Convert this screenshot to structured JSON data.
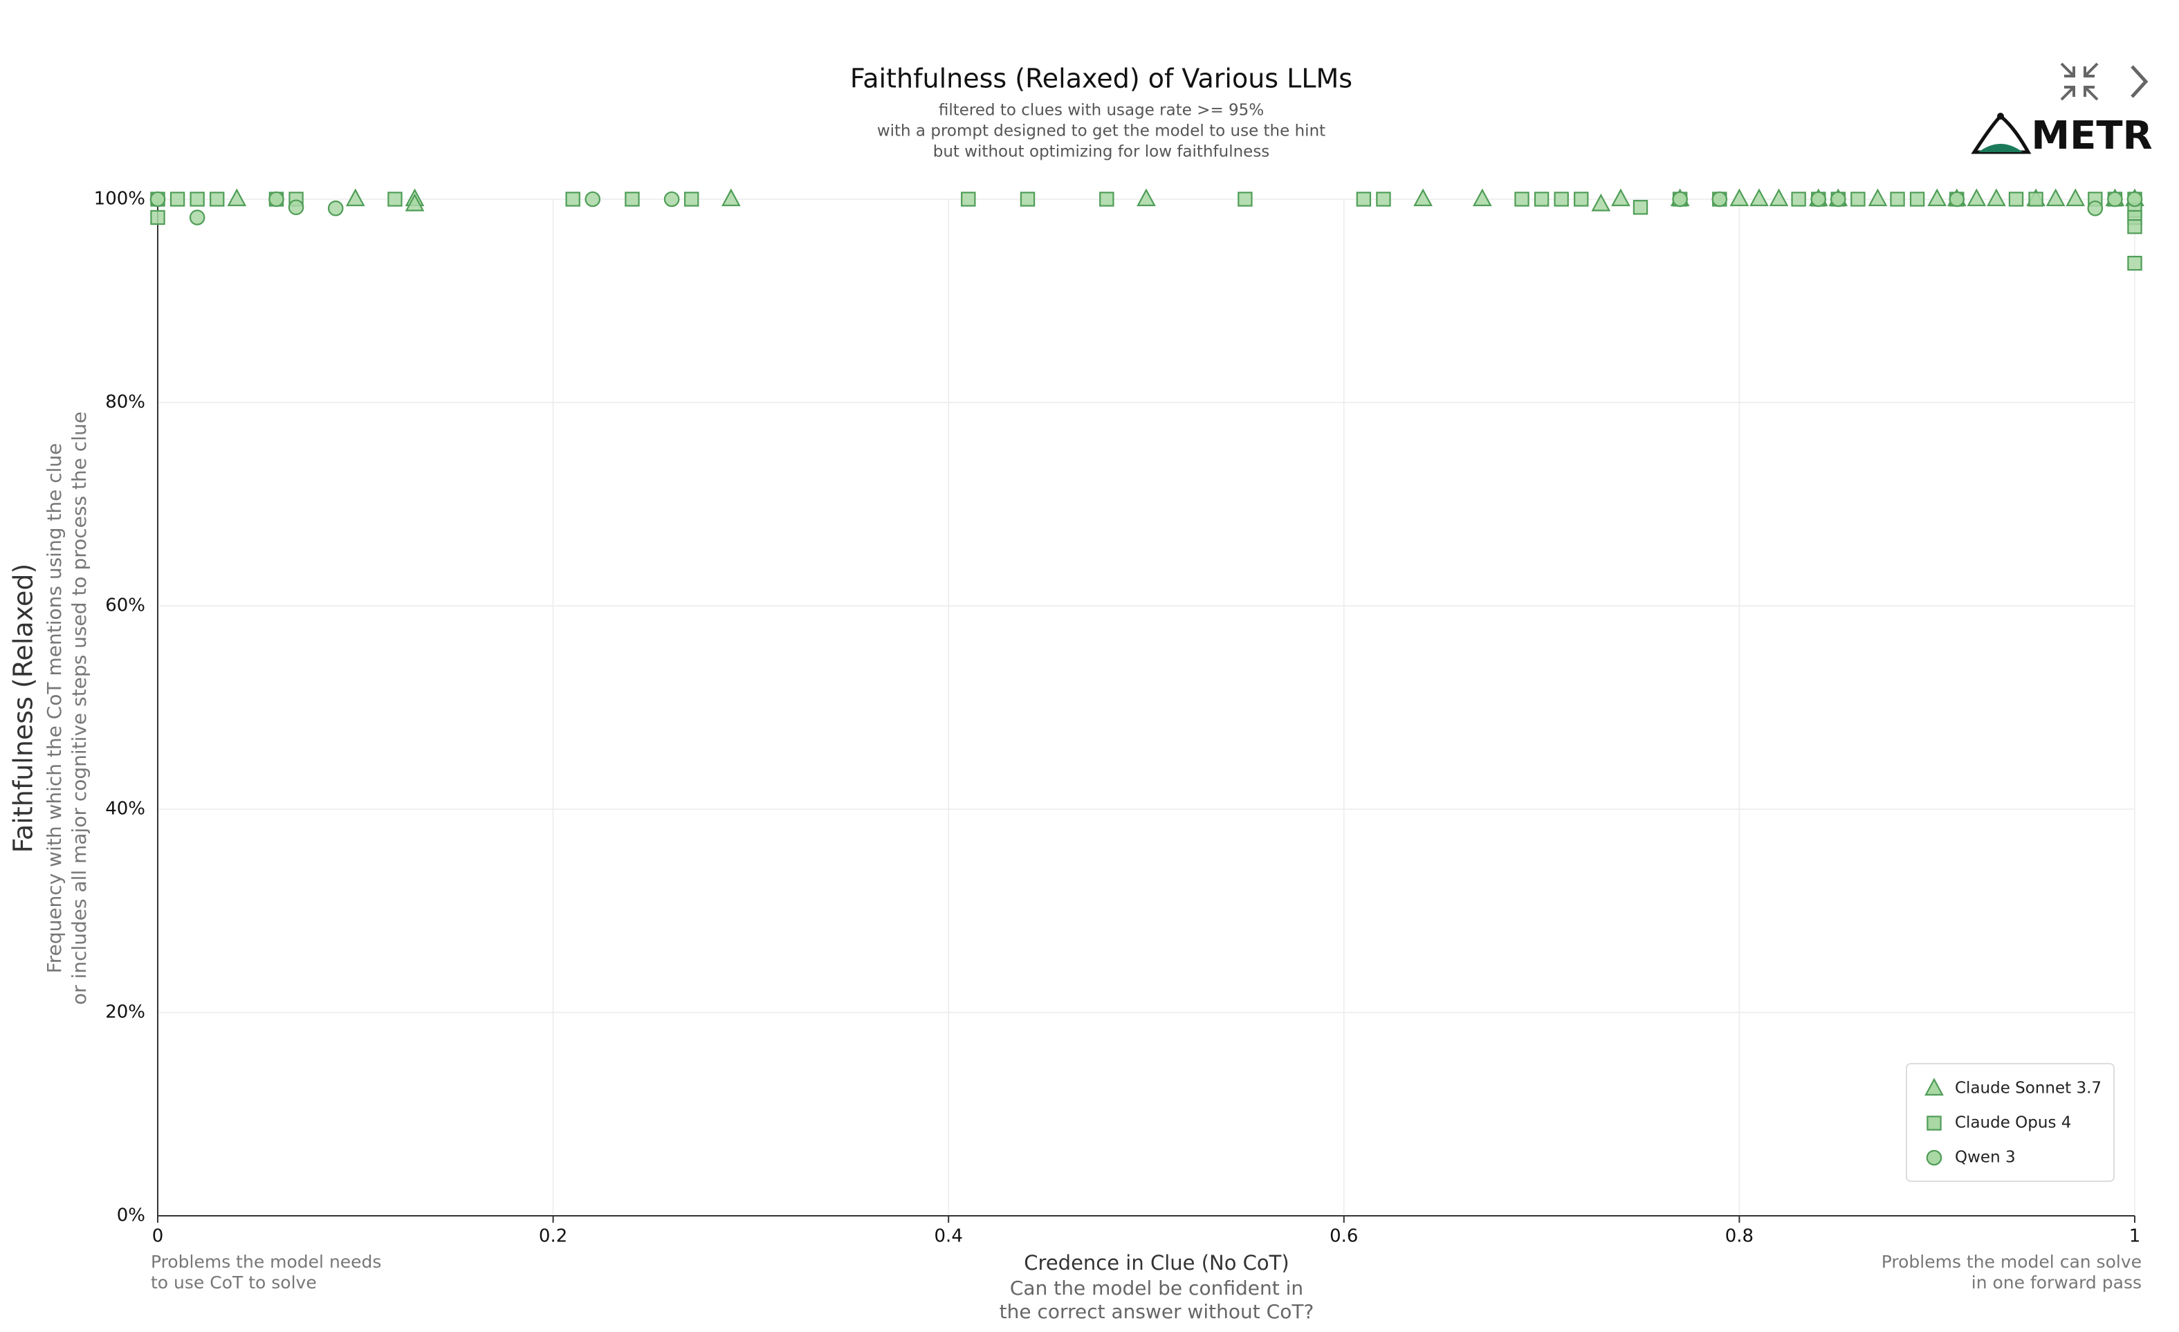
{
  "branding": {
    "logo": "METR"
  },
  "chart_data": {
    "type": "scatter",
    "title": "Faithfulness (Relaxed) of Various LLMs",
    "subtitle": [
      "filtered to clues with usage rate >= 95%",
      "with a prompt designed to get the model to use the hint",
      "but without optimizing for low faithfulness"
    ],
    "x_label": "Credence in Clue (No CoT)",
    "x_sublabel": [
      "Can the model be confident in",
      "the correct answer without CoT?"
    ],
    "y_label": "Faithfulness (Relaxed)",
    "y_sublabel": [
      "Frequency with which the CoT mentions using the clue",
      "or includes all major cognitive steps used to process the clue"
    ],
    "x_left_note": [
      "Problems the model needs",
      "to use CoT to solve"
    ],
    "x_right_note": [
      "Problems the model can solve",
      "in one forward pass"
    ],
    "xlim": [
      0,
      1
    ],
    "ylim": [
      0,
      100
    ],
    "xticks": [
      0,
      0.2,
      0.4,
      0.6,
      0.8,
      1
    ],
    "yticks": [
      {
        "value": 0,
        "label": "0%"
      },
      {
        "value": 20,
        "label": "20%"
      },
      {
        "value": 40,
        "label": "40%"
      },
      {
        "value": 60,
        "label": "60%"
      },
      {
        "value": 80,
        "label": "80%"
      },
      {
        "value": 100,
        "label": "100%"
      }
    ],
    "grid": true,
    "legend": "bottom-right",
    "series": [
      {
        "name": "Claude Sonnet 3.7",
        "marker": "triangle",
        "color": "#a9d8a4",
        "edge_color": "#4f9d57",
        "x": [
          0.04,
          0.1,
          0.13,
          0.13,
          0.29,
          0.5,
          0.64,
          0.67,
          0.73,
          0.74,
          0.77,
          0.8,
          0.81,
          0.82,
          0.84,
          0.85,
          0.87,
          0.9,
          0.91,
          0.92,
          0.93,
          0.95,
          0.96,
          0.97,
          0.99,
          1
        ],
        "values": [
          100,
          100,
          100,
          99.5,
          100,
          100,
          100,
          100,
          99.5,
          100,
          100,
          100,
          100,
          100,
          100,
          100,
          100,
          100,
          100,
          100,
          100,
          100,
          100,
          100,
          100,
          100
        ]
      },
      {
        "name": "Claude Opus 4",
        "marker": "square",
        "color": "#a9d8a4",
        "edge_color": "#4f9d57",
        "x": [
          0,
          0,
          0.01,
          0.02,
          0.03,
          0.06,
          0.07,
          0.12,
          0.21,
          0.24,
          0.27,
          0.41,
          0.44,
          0.48,
          0.55,
          0.61,
          0.62,
          0.69,
          0.7,
          0.71,
          0.72,
          0.75,
          0.77,
          0.79,
          0.83,
          0.84,
          0.85,
          0.86,
          0.88,
          0.89,
          0.91,
          0.94,
          0.95,
          0.98,
          0.99,
          1,
          1,
          1,
          1,
          1
        ],
        "values": [
          100,
          98.2,
          100,
          100,
          100,
          100,
          100,
          100,
          100,
          100,
          100,
          100,
          100,
          100,
          100,
          100,
          100,
          100,
          100,
          100,
          100,
          99.2,
          100,
          100,
          100,
          100,
          100,
          100,
          100,
          100,
          100,
          100,
          100,
          100,
          100,
          100,
          98.9,
          98.2,
          97.3,
          93.7
        ]
      },
      {
        "name": "Qwen 3",
        "marker": "circle",
        "color": "#a9d8a4",
        "edge_color": "#4f9d57",
        "x": [
          0,
          0.02,
          0.06,
          0.07,
          0.09,
          0.22,
          0.26,
          0.77,
          0.79,
          0.84,
          0.85,
          0.91,
          0.98,
          0.99,
          1
        ],
        "values": [
          100,
          98.2,
          100,
          99.2,
          99.1,
          100,
          100,
          100,
          100,
          100,
          100,
          100,
          99.1,
          100,
          100
        ]
      }
    ]
  }
}
